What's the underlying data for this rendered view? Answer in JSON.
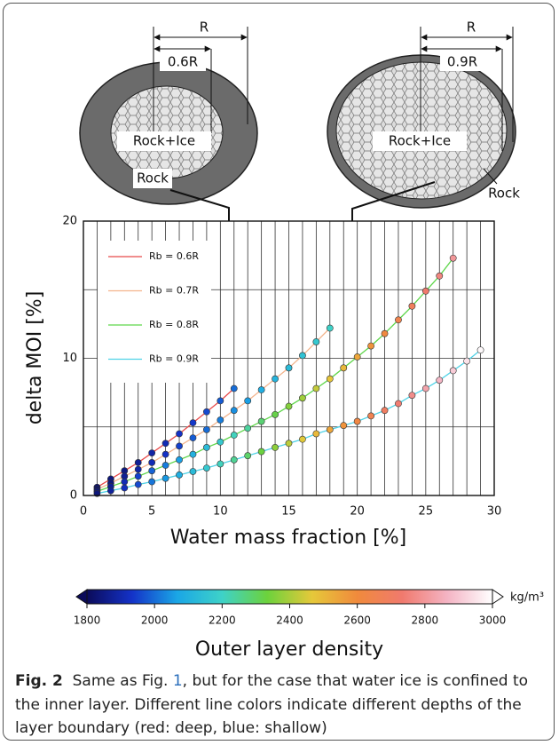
{
  "chart_data": {
    "type": "line",
    "xlabel": "Water mass fraction [%]",
    "ylabel": "delta MOI [%]",
    "xlim": [
      0,
      30
    ],
    "ylim": [
      0,
      20
    ],
    "xticks": [
      0,
      5,
      10,
      15,
      20,
      25,
      30
    ],
    "yticks": [
      0,
      10,
      20
    ],
    "xminorticks": [
      1,
      2,
      3,
      4,
      6,
      7,
      8,
      9,
      11,
      12,
      13,
      14,
      16,
      17,
      18,
      19,
      21,
      22,
      23,
      24,
      26,
      27,
      28,
      29
    ],
    "yminorticks": [
      5,
      15
    ],
    "grid": true,
    "legend": "upper left",
    "series": [
      {
        "name": "Rb = 0.6R",
        "color": "#e84a4a",
        "x": [
          1,
          2,
          3,
          4,
          5,
          6,
          7,
          8,
          9,
          10,
          11
        ],
        "values": [
          0.6,
          1.2,
          1.8,
          2.4,
          3.1,
          3.8,
          4.5,
          5.3,
          6.1,
          6.9,
          7.8
        ],
        "density": [
          1820,
          1840,
          1850,
          1870,
          1890,
          1910,
          1930,
          1940,
          1960,
          1980,
          2000
        ]
      },
      {
        "name": "Rb = 0.7R",
        "color": "#f3b48c",
        "x": [
          1,
          2,
          3,
          4,
          5,
          6,
          7,
          8,
          9,
          10,
          11,
          12,
          13,
          14,
          15,
          16,
          17,
          18
        ],
        "values": [
          0.45,
          0.9,
          1.4,
          1.9,
          2.4,
          3.0,
          3.6,
          4.2,
          4.8,
          5.5,
          6.2,
          6.9,
          7.7,
          8.5,
          9.3,
          10.2,
          11.2,
          12.2
        ],
        "density": [
          1820,
          1840,
          1870,
          1890,
          1910,
          1930,
          1950,
          1980,
          2000,
          2020,
          2040,
          2060,
          2090,
          2110,
          2130,
          2150,
          2170,
          2200
        ]
      },
      {
        "name": "Rb = 0.8R",
        "color": "#5ed64a",
        "x": [
          1,
          2,
          3,
          4,
          5,
          6,
          7,
          8,
          9,
          10,
          11,
          12,
          13,
          14,
          15,
          16,
          17,
          18,
          19,
          20,
          21,
          22,
          23,
          24,
          25,
          26,
          27
        ],
        "values": [
          0.3,
          0.65,
          1.0,
          1.4,
          1.8,
          2.2,
          2.6,
          3.0,
          3.5,
          3.9,
          4.4,
          4.9,
          5.4,
          5.9,
          6.5,
          7.1,
          7.8,
          8.5,
          9.3,
          10.1,
          10.9,
          11.8,
          12.8,
          13.8,
          14.9,
          16.0,
          17.3
        ],
        "density": [
          1840,
          1870,
          1910,
          1950,
          1990,
          2020,
          2060,
          2100,
          2130,
          2170,
          2210,
          2240,
          2280,
          2320,
          2360,
          2390,
          2430,
          2470,
          2500,
          2540,
          2580,
          2610,
          2650,
          2690,
          2730,
          2760,
          2800
        ]
      },
      {
        "name": "Rb = 0.9R",
        "color": "#4fd2e6",
        "x": [
          1,
          2,
          3,
          4,
          5,
          6,
          7,
          8,
          9,
          10,
          11,
          12,
          13,
          14,
          15,
          16,
          17,
          18,
          19,
          20,
          21,
          22,
          23,
          24,
          25,
          26,
          27,
          28,
          29
        ],
        "values": [
          0.15,
          0.35,
          0.55,
          0.8,
          1.0,
          1.25,
          1.5,
          1.75,
          2.0,
          2.3,
          2.6,
          2.9,
          3.2,
          3.5,
          3.8,
          4.1,
          4.5,
          4.8,
          5.1,
          5.4,
          5.8,
          6.2,
          6.7,
          7.3,
          7.8,
          8.4,
          9.1,
          9.8,
          10.6
        ],
        "density": [
          1840,
          1880,
          1920,
          1960,
          2010,
          2050,
          2090,
          2130,
          2170,
          2210,
          2250,
          2290,
          2330,
          2370,
          2420,
          2460,
          2500,
          2540,
          2580,
          2620,
          2660,
          2700,
          2740,
          2780,
          2830,
          2870,
          2910,
          2950,
          2990
        ]
      }
    ],
    "colorbar": {
      "label": "Outer layer density",
      "unit": "kg/m³",
      "clim": [
        1800,
        3000
      ],
      "ticks": [
        1800,
        2000,
        2200,
        2400,
        2600,
        2800,
        3000
      ],
      "colors": [
        "#0b0b5a",
        "#1432c8",
        "#1aa6e6",
        "#3ed2c8",
        "#6cd23c",
        "#e6c83a",
        "#f08a3c",
        "#f07a6e",
        "#f4b4c4",
        "#ffffff"
      ]
    }
  },
  "diagrams": [
    {
      "outer_dim": "R",
      "inner_dim": "0.6R",
      "inner_text": "Rock+Ice",
      "outer_text": "Rock"
    },
    {
      "outer_dim": "R",
      "inner_dim": "0.9R",
      "inner_text": "Rock+Ice",
      "outer_text": "Rock"
    }
  ],
  "caption": {
    "label": "Fig. 2",
    "text_before": "Same as Fig.",
    "link": "1",
    "text_after": ", but for the case that water ice is confined to the inner layer. Different line colors indicate different depths of the layer boundary (red: deep, blue: shallow)"
  }
}
